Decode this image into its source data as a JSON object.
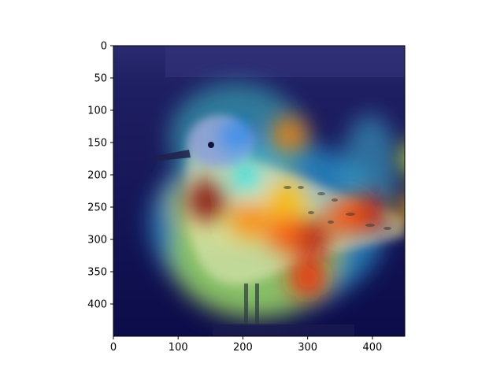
{
  "chart_data": {
    "type": "heatmap",
    "title": "",
    "xlabel": "",
    "ylabel": "",
    "xlim": [
      0,
      450
    ],
    "ylim": [
      450,
      0
    ],
    "x_ticks": [
      0,
      100,
      200,
      300,
      400
    ],
    "y_ticks": [
      0,
      50,
      100,
      150,
      200,
      250,
      300,
      350,
      400
    ],
    "grid": false,
    "colormap": "jet",
    "image_subject": "bird",
    "hotspots": [
      {
        "x": 145,
        "y": 240,
        "level": 1.0
      },
      {
        "x": 395,
        "y": 258,
        "level": 0.95
      },
      {
        "x": 305,
        "y": 298,
        "level": 0.95
      },
      {
        "x": 272,
        "y": 138,
        "level": 0.75
      },
      {
        "x": 470,
        "y": 175,
        "level": 0.6
      },
      {
        "x": 300,
        "y": 360,
        "level": 0.85
      },
      {
        "x": 360,
        "y": 265,
        "level": 0.8
      },
      {
        "x": 265,
        "y": 290,
        "level": 0.8
      },
      {
        "x": 265,
        "y": 240,
        "level": 0.7
      },
      {
        "x": 470,
        "y": 255,
        "level": 0.7
      },
      {
        "x": 210,
        "y": 270,
        "level": 0.75
      },
      {
        "x": 205,
        "y": 207,
        "level": 0.35
      },
      {
        "x": 190,
        "y": 140,
        "level": 0.25
      }
    ]
  }
}
